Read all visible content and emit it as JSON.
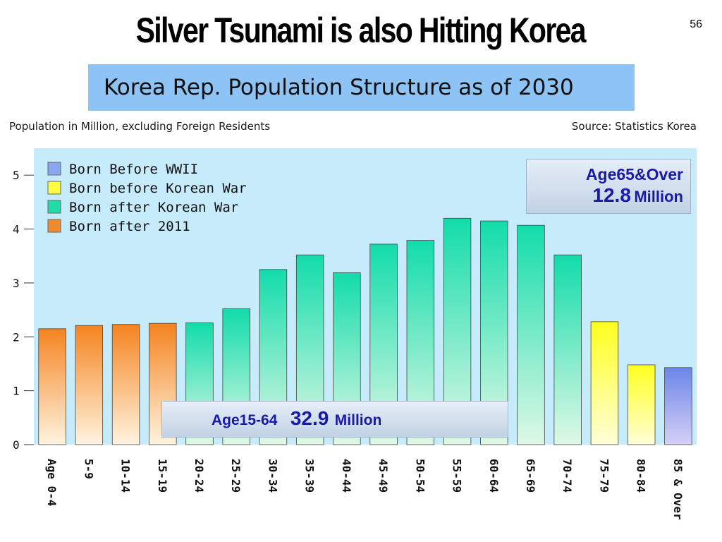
{
  "slide": {
    "title": "Silver Tsunami is also Hitting Korea",
    "page_number": "56",
    "subtitle": "Korea Rep. Population Structure as of 2030",
    "note_left": "Population in Million, excluding Foreign Residents",
    "note_right": "Source: Statistics Korea"
  },
  "callouts": {
    "age65": {
      "label": "Age65&Over",
      "value": "12.8",
      "unit": "Million"
    },
    "age1564": {
      "label": "Age15-64",
      "value": "32.9",
      "unit": "Million"
    }
  },
  "chart_data": {
    "type": "bar",
    "title": "Korea Rep. Population Structure as of 2030",
    "ylabel": "Population in Million, excluding Foreign Residents",
    "ylim": [
      0,
      5.5
    ],
    "yticks": [
      0,
      1,
      2,
      3,
      4,
      5
    ],
    "categories": [
      "Age 0-4",
      "5-9",
      "10-14",
      "15-19",
      "20-24",
      "25-29",
      "30-34",
      "35-39",
      "40-44",
      "45-49",
      "50-54",
      "55-59",
      "60-64",
      "65-69",
      "70-74",
      "75-79",
      "80-84",
      "85 & Over"
    ],
    "values": [
      2.15,
      2.21,
      2.23,
      2.25,
      2.26,
      2.52,
      3.25,
      3.52,
      3.19,
      3.72,
      3.79,
      4.2,
      4.15,
      4.07,
      3.52,
      2.28,
      1.48,
      1.43
    ],
    "groups": [
      3,
      3,
      3,
      3,
      2,
      2,
      2,
      2,
      2,
      2,
      2,
      2,
      2,
      2,
      2,
      1,
      1,
      0
    ],
    "legend": [
      {
        "name": "Born Before WWII",
        "color": "#8aa6f0"
      },
      {
        "name": "Born before Korean War",
        "color": "#ffff40"
      },
      {
        "name": "Born after Korean War",
        "color": "#20dca8"
      },
      {
        "name": "Born after 2011",
        "color": "#f08a30"
      }
    ],
    "legend_position": "top-left",
    "grid": false,
    "background": "#c6ecfb"
  }
}
